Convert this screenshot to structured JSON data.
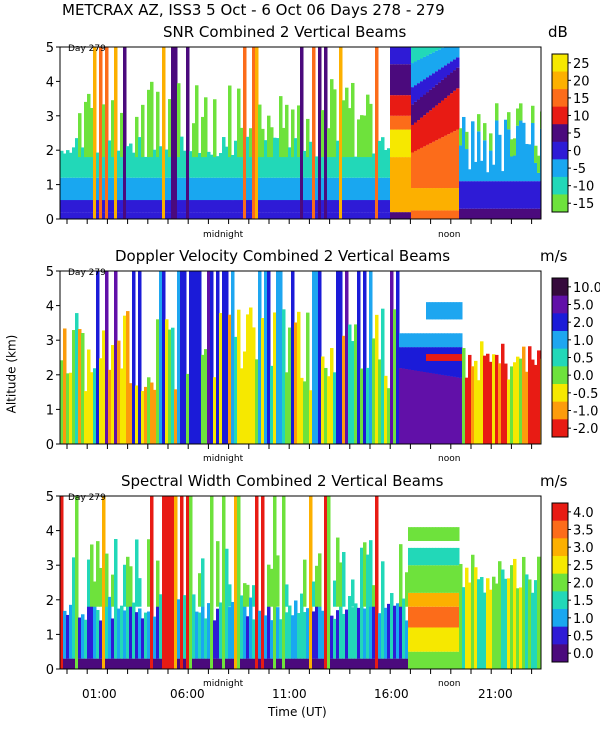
{
  "header": {
    "title": "METCRAX AZ, ISS3   5 Oct -  6 Oct 06 Days 278 - 279"
  },
  "axes": {
    "ylabel": "Altitude (km)",
    "xlabel": "Time (UT)",
    "y_ticks": [
      "0",
      "1",
      "2",
      "3",
      "4",
      "5"
    ],
    "x_tick_labels": [
      "01:00",
      "06:00",
      "11:00",
      "16:00",
      "21:00"
    ],
    "midnight_label": "midnight",
    "noon_label": "noon",
    "day_marker": "Day 279"
  },
  "chart_data": [
    {
      "type": "heatmap",
      "title": "SNR Combined 2 Vertical Beams",
      "unit": "dB",
      "ylim": [
        0,
        5
      ],
      "colorbar_labels": [
        "25",
        "20",
        "15",
        "10",
        "5",
        "0",
        "-5",
        "-10",
        "-15"
      ],
      "colors": [
        "#f6e800",
        "#fcb000",
        "#fc6c1a",
        "#e81b14",
        "#4b0a7d",
        "#2e1bd6",
        "#19a7f0",
        "#22d8b8",
        "#6ee23c"
      ],
      "fields": {
        "background": [
          "#ffffff",
          "#6ee23c",
          "#22d8b8"
        ],
        "boundary_layer_top_km": 0.8,
        "afternoon_peak_km": 3.5
      }
    },
    {
      "type": "heatmap",
      "title": "Doppler Velocity Combined 2 Vertical Beams",
      "unit": "m/s",
      "ylim": [
        0,
        5
      ],
      "colorbar_labels": [
        "10.0",
        "5.0",
        "2.0",
        "1.0",
        "0.5",
        "0.0",
        "-0.5",
        "-1.0",
        "-2.0"
      ],
      "colors": [
        "#360a3c",
        "#6110a8",
        "#1b1bd8",
        "#1ea6f0",
        "#22d8b8",
        "#6ee23c",
        "#f6e800",
        "#fc9c0c",
        "#e81b14"
      ]
    },
    {
      "type": "heatmap",
      "title": "Spectral Width Combined 2 Vertical Beams",
      "unit": "m/s",
      "ylim": [
        0,
        5
      ],
      "colorbar_labels": [
        "4.0",
        "3.5",
        "3.0",
        "2.5",
        "2.0",
        "1.5",
        "1.0",
        "0.5",
        "0.0"
      ],
      "colors": [
        "#e81b14",
        "#fc6c1a",
        "#fcb000",
        "#f6e800",
        "#6ee23c",
        "#22d8b8",
        "#19a7f0",
        "#2e1bd6",
        "#4b0a7d"
      ]
    }
  ]
}
